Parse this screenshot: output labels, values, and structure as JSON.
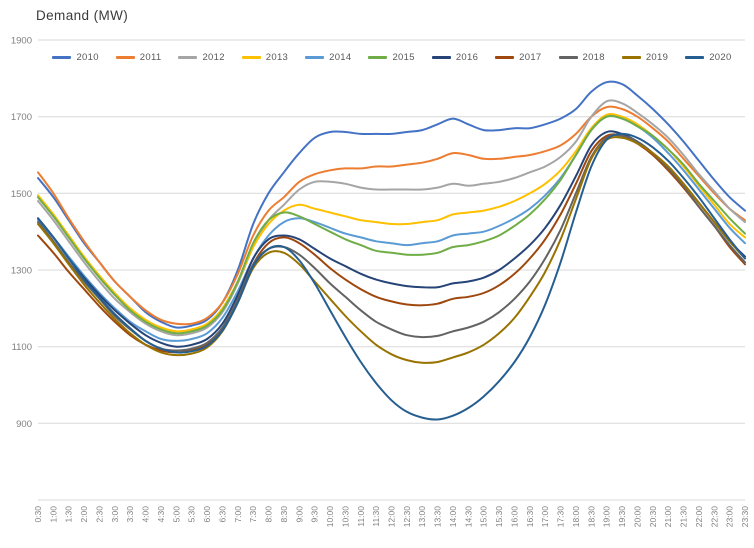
{
  "colors": {
    "background": "#ffffff",
    "grid": "#d9d9d9",
    "tick": "#808080",
    "title": "#3a3a3a"
  },
  "chart_data": {
    "type": "line",
    "title": "Demand (MW)",
    "ylabel": "Demand (MW)",
    "xlabel": "",
    "ylim": [
      700,
      1900
    ],
    "y_ticks": [
      1900,
      1700,
      1500,
      1300,
      1100,
      900
    ],
    "grid_values": [
      1900,
      1700,
      1500,
      1300,
      1100,
      900,
      700
    ],
    "grid": true,
    "legend_position": "top",
    "categories": [
      "0:30",
      "1:00",
      "1:30",
      "2:00",
      "2:30",
      "3:00",
      "3:30",
      "4:00",
      "4:30",
      "5:00",
      "5:30",
      "6:00",
      "6:30",
      "7:00",
      "7:30",
      "8:00",
      "8:30",
      "9:00",
      "9:30",
      "10:00",
      "10:30",
      "11:00",
      "11:30",
      "12:00",
      "12:30",
      "13:00",
      "13:30",
      "14:00",
      "14:30",
      "15:00",
      "15:30",
      "16:00",
      "16:30",
      "17:00",
      "17:30",
      "18:00",
      "18:30",
      "19:00",
      "19:30",
      "20:00",
      "20:30",
      "21:00",
      "21:30",
      "22:00",
      "22:30",
      "23:00",
      "23:30"
    ],
    "series": [
      {
        "name": "2010",
        "color": "#4472C4",
        "values": [
          1540,
          1490,
          1430,
          1370,
          1320,
          1270,
          1230,
          1190,
          1165,
          1150,
          1155,
          1170,
          1215,
          1300,
          1420,
          1500,
          1555,
          1605,
          1645,
          1660,
          1660,
          1655,
          1655,
          1655,
          1660,
          1665,
          1680,
          1695,
          1680,
          1665,
          1665,
          1670,
          1670,
          1680,
          1695,
          1720,
          1765,
          1790,
          1785,
          1755,
          1720,
          1680,
          1635,
          1585,
          1535,
          1490,
          1455
        ]
      },
      {
        "name": "2011",
        "color": "#ED7D31",
        "values": [
          1555,
          1500,
          1435,
          1375,
          1320,
          1270,
          1230,
          1195,
          1170,
          1160,
          1160,
          1175,
          1215,
          1290,
          1390,
          1455,
          1490,
          1530,
          1550,
          1560,
          1565,
          1565,
          1570,
          1570,
          1575,
          1580,
          1590,
          1605,
          1600,
          1590,
          1590,
          1595,
          1600,
          1610,
          1625,
          1655,
          1700,
          1725,
          1720,
          1700,
          1670,
          1635,
          1590,
          1545,
          1500,
          1460,
          1430
        ]
      },
      {
        "name": "2012",
        "color": "#A5A5A5",
        "values": [
          1480,
          1430,
          1375,
          1320,
          1270,
          1225,
          1190,
          1160,
          1140,
          1130,
          1135,
          1150,
          1190,
          1265,
          1360,
          1430,
          1470,
          1510,
          1530,
          1530,
          1525,
          1515,
          1510,
          1510,
          1510,
          1510,
          1515,
          1525,
          1520,
          1525,
          1530,
          1540,
          1555,
          1570,
          1595,
          1635,
          1700,
          1740,
          1735,
          1710,
          1680,
          1645,
          1600,
          1550,
          1505,
          1460,
          1425
        ]
      },
      {
        "name": "2013",
        "color": "#FFC000",
        "values": [
          1495,
          1445,
          1390,
          1335,
          1285,
          1240,
          1200,
          1170,
          1150,
          1140,
          1145,
          1160,
          1200,
          1270,
          1360,
          1420,
          1455,
          1470,
          1460,
          1450,
          1440,
          1430,
          1425,
          1420,
          1420,
          1425,
          1430,
          1445,
          1450,
          1455,
          1465,
          1480,
          1500,
          1525,
          1560,
          1610,
          1670,
          1705,
          1700,
          1680,
          1650,
          1615,
          1570,
          1520,
          1470,
          1420,
          1385
        ]
      },
      {
        "name": "2014",
        "color": "#5B9BD5",
        "values": [
          1430,
          1385,
          1335,
          1285,
          1240,
          1200,
          1165,
          1140,
          1120,
          1115,
          1120,
          1135,
          1175,
          1245,
          1330,
          1390,
          1425,
          1435,
          1425,
          1410,
          1395,
          1385,
          1375,
          1370,
          1365,
          1370,
          1375,
          1390,
          1395,
          1400,
          1415,
          1435,
          1460,
          1495,
          1540,
          1600,
          1665,
          1700,
          1695,
          1675,
          1645,
          1605,
          1560,
          1510,
          1460,
          1410,
          1370
        ]
      },
      {
        "name": "2015",
        "color": "#70AD47",
        "values": [
          1490,
          1440,
          1385,
          1330,
          1280,
          1235,
          1195,
          1165,
          1145,
          1135,
          1140,
          1155,
          1195,
          1270,
          1370,
          1430,
          1450,
          1440,
          1420,
          1400,
          1380,
          1365,
          1350,
          1345,
          1340,
          1340,
          1345,
          1360,
          1365,
          1375,
          1390,
          1415,
          1445,
          1485,
          1535,
          1600,
          1665,
          1700,
          1695,
          1675,
          1650,
          1615,
          1575,
          1525,
          1480,
          1435,
          1395
        ]
      },
      {
        "name": "2016",
        "color": "#264478",
        "values": [
          1435,
          1385,
          1330,
          1280,
          1235,
          1195,
          1160,
          1130,
          1110,
          1100,
          1105,
          1120,
          1160,
          1235,
          1330,
          1380,
          1390,
          1380,
          1355,
          1330,
          1310,
          1290,
          1275,
          1265,
          1258,
          1255,
          1255,
          1265,
          1270,
          1280,
          1300,
          1330,
          1365,
          1410,
          1470,
          1545,
          1625,
          1660,
          1655,
          1635,
          1605,
          1570,
          1525,
          1475,
          1425,
          1375,
          1335
        ]
      },
      {
        "name": "2017",
        "color": "#9E480E",
        "values": [
          1390,
          1345,
          1295,
          1250,
          1205,
          1165,
          1130,
          1105,
          1090,
          1085,
          1090,
          1105,
          1145,
          1220,
          1315,
          1370,
          1385,
          1370,
          1340,
          1305,
          1275,
          1250,
          1230,
          1218,
          1210,
          1208,
          1212,
          1225,
          1230,
          1240,
          1260,
          1290,
          1330,
          1380,
          1445,
          1525,
          1610,
          1650,
          1650,
          1630,
          1600,
          1560,
          1515,
          1465,
          1415,
          1360,
          1315
        ]
      },
      {
        "name": "2018",
        "color": "#636363",
        "values": [
          1425,
          1375,
          1320,
          1270,
          1225,
          1180,
          1145,
          1115,
          1095,
          1090,
          1095,
          1110,
          1150,
          1225,
          1315,
          1355,
          1360,
          1340,
          1305,
          1265,
          1230,
          1195,
          1165,
          1145,
          1130,
          1125,
          1128,
          1140,
          1150,
          1165,
          1190,
          1225,
          1270,
          1330,
          1405,
          1500,
          1595,
          1645,
          1650,
          1635,
          1605,
          1565,
          1520,
          1465,
          1415,
          1365,
          1320
        ]
      },
      {
        "name": "2019",
        "color": "#997300",
        "values": [
          1420,
          1370,
          1315,
          1262,
          1215,
          1172,
          1135,
          1105,
          1085,
          1078,
          1082,
          1098,
          1140,
          1215,
          1305,
          1345,
          1345,
          1315,
          1270,
          1225,
          1180,
          1140,
          1105,
          1080,
          1065,
          1058,
          1060,
          1072,
          1085,
          1105,
          1135,
          1175,
          1230,
          1295,
          1380,
          1485,
          1590,
          1640,
          1645,
          1630,
          1605,
          1570,
          1525,
          1475,
          1425,
          1375,
          1330
        ]
      },
      {
        "name": "2020",
        "color": "#255E91",
        "values": [
          1435,
          1385,
          1330,
          1275,
          1228,
          1185,
          1148,
          1115,
          1095,
          1085,
          1088,
          1102,
          1142,
          1215,
          1310,
          1355,
          1360,
          1325,
          1265,
          1195,
          1125,
          1060,
          1005,
          960,
          930,
          915,
          910,
          920,
          940,
          970,
          1010,
          1060,
          1125,
          1210,
          1320,
          1450,
          1570,
          1640,
          1655,
          1645,
          1620,
          1585,
          1540,
          1490,
          1435,
          1380,
          1330
        ]
      }
    ]
  }
}
